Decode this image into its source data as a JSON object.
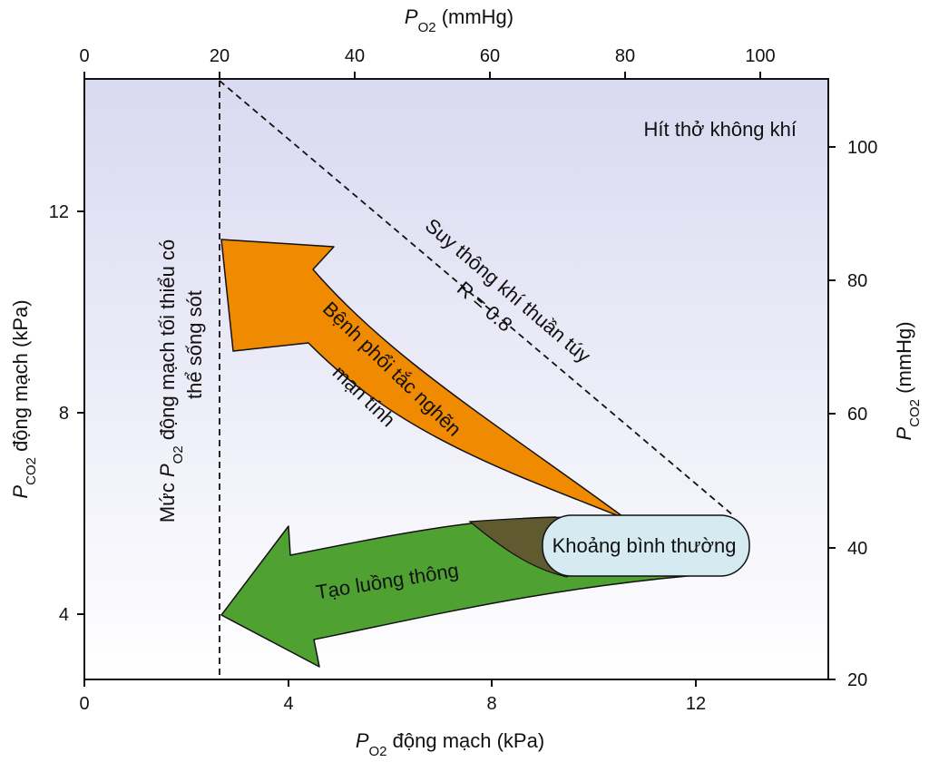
{
  "colors": {
    "background_top": "#d9d9f1",
    "background_bottom": "#ffffff",
    "copd_arrow": "#f08a00",
    "shunt_arrow": "#4fa232",
    "overlap": "#5f5a30",
    "normal_range_fill": "#d6eaf2",
    "line": "#111111"
  },
  "axes": {
    "bottom": {
      "title_main": "P",
      "title_sub": "O2",
      "title_rest": " động mạch (kPa)",
      "ticks": [
        "0",
        "4",
        "8",
        "12"
      ],
      "range": [
        0,
        14.7
      ]
    },
    "top": {
      "title_main": "P",
      "title_sub": "O2",
      "title_rest": " (mmHg)",
      "ticks": [
        "0",
        "20",
        "40",
        "60",
        "80",
        "100"
      ]
    },
    "left": {
      "title_main": "P",
      "title_sub": "CO2",
      "title_rest": " động mạch (kPa)",
      "ticks": [
        "4",
        "8",
        "12"
      ],
      "range": [
        2.7,
        14.7
      ]
    },
    "right": {
      "title_main": "P",
      "title_sub": "CO2",
      "title_rest": " (mmHg)",
      "ticks": [
        "20",
        "40",
        "60",
        "80",
        "100"
      ]
    }
  },
  "annotations": {
    "air_breathing": "Hít thở không khí",
    "pure_hypoventilation": "Suy thông khí thuần túy",
    "r_value": "R = 0.8",
    "min_po2_line1_a": "Mức ",
    "min_po2_line1_p": "P",
    "min_po2_line1_sub": "O2",
    "min_po2_line1_b": " động mạch tối thiểu có",
    "min_po2_line2": "thể sống sót",
    "copd_line1": "Bệnh phổi tắc nghẽn",
    "copd_line2": "mạn tính",
    "shunt": "Tạo luồng thông",
    "normal_range": "Khoảng bình thường"
  }
}
